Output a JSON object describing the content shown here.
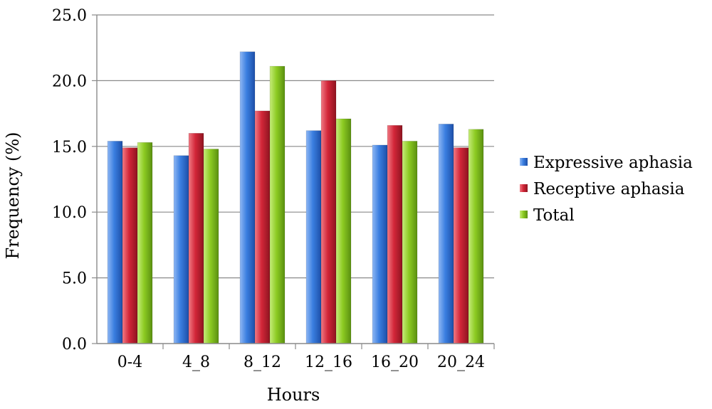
{
  "chart_data": {
    "type": "bar",
    "title": "",
    "xlabel": "Hours",
    "ylabel": "Frequency (%)",
    "ylim": [
      0,
      25
    ],
    "yticks": [
      "0.0",
      "5.0",
      "10.0",
      "15.0",
      "20.0",
      "25.0"
    ],
    "grid": "horizontal",
    "legend": "right",
    "categories": [
      "0-4",
      "4_8",
      "8_12",
      "12_16",
      "16_20",
      "20_24"
    ],
    "series": [
      {
        "name": "Expressive aphasia",
        "color": "#2f6fd6",
        "values": [
          15.4,
          14.3,
          22.2,
          16.2,
          15.1,
          16.7
        ]
      },
      {
        "name": "Receptive aphasia",
        "color": "#c8202f",
        "values": [
          14.9,
          16.0,
          17.7,
          20.0,
          16.6,
          14.9
        ]
      },
      {
        "name": "Total",
        "color": "#84c21c",
        "values": [
          15.3,
          14.8,
          21.1,
          17.1,
          15.4,
          16.3
        ]
      }
    ]
  }
}
